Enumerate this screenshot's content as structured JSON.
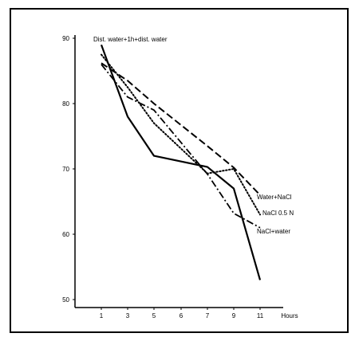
{
  "chart_data": {
    "type": "line",
    "title": "",
    "xlabel": "Hours",
    "ylabel": "",
    "x_ticks": [
      1,
      3,
      5,
      6,
      7,
      9,
      11
    ],
    "y_ticks": [
      50,
      60,
      70,
      80,
      90
    ],
    "xlim": [
      -1,
      13
    ],
    "ylim": [
      49,
      91
    ],
    "grid": false,
    "legend": "inline-labels",
    "series": [
      {
        "name": "Dist. water+1h+dist. water",
        "style": "solid",
        "x": [
          1,
          3,
          5,
          7,
          9,
          11
        ],
        "y": [
          89,
          78,
          72,
          70.3,
          67,
          53
        ]
      },
      {
        "name": "Water+NaCl",
        "style": "dashed",
        "x": [
          1,
          3,
          5,
          7,
          9,
          11
        ],
        "y": [
          86.2,
          83.5,
          80,
          73.5,
          70.2,
          66
        ]
      },
      {
        "name": "NaCl 0.5 N",
        "style": "dotted",
        "x": [
          1,
          3,
          5,
          7,
          9,
          11
        ],
        "y": [
          87.5,
          82.5,
          77,
          69.3,
          70,
          63
        ]
      },
      {
        "name": "NaCl+water",
        "style": "dashdot",
        "x": [
          1,
          3,
          5,
          7,
          9,
          11
        ],
        "y": [
          86,
          81,
          79,
          69.2,
          63.2,
          61
        ]
      }
    ]
  }
}
